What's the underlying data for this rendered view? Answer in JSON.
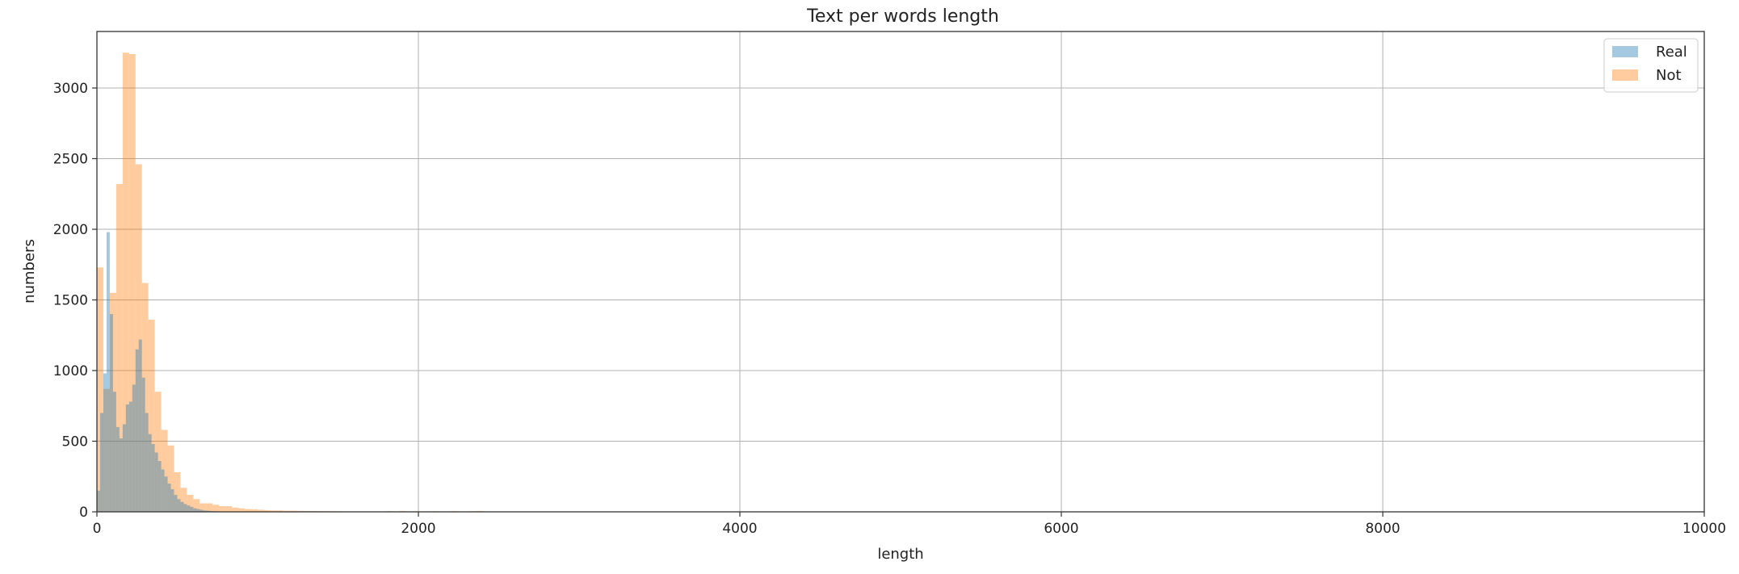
{
  "chart_data": {
    "type": "bar",
    "title": "Text per words length",
    "xlabel": "length",
    "ylabel": "numbers",
    "xlim": [
      0,
      10000
    ],
    "ylim": [
      0,
      3400
    ],
    "xticks": [
      0,
      2000,
      4000,
      6000,
      8000,
      10000
    ],
    "yticks": [
      0,
      500,
      1000,
      1500,
      2000,
      2500,
      3000
    ],
    "grid": true,
    "legend_position": "top-right",
    "series": [
      {
        "name": "Real",
        "color": "#1f77b4",
        "opacity": 0.4,
        "bin_width": 20,
        "bins": [
          [
            0,
            150
          ],
          [
            20,
            700
          ],
          [
            40,
            980
          ],
          [
            60,
            1980
          ],
          [
            80,
            1400
          ],
          [
            100,
            850
          ],
          [
            120,
            600
          ],
          [
            140,
            520
          ],
          [
            160,
            620
          ],
          [
            180,
            760
          ],
          [
            200,
            780
          ],
          [
            220,
            900
          ],
          [
            240,
            1150
          ],
          [
            260,
            1220
          ],
          [
            280,
            950
          ],
          [
            300,
            700
          ],
          [
            320,
            550
          ],
          [
            340,
            480
          ],
          [
            360,
            420
          ],
          [
            380,
            360
          ],
          [
            400,
            300
          ],
          [
            420,
            250
          ],
          [
            440,
            200
          ],
          [
            460,
            160
          ],
          [
            480,
            120
          ],
          [
            500,
            90
          ],
          [
            520,
            70
          ],
          [
            540,
            55
          ],
          [
            560,
            45
          ],
          [
            580,
            35
          ],
          [
            600,
            25
          ],
          [
            620,
            20
          ],
          [
            640,
            15
          ],
          [
            660,
            10
          ],
          [
            680,
            8
          ],
          [
            700,
            6
          ],
          [
            720,
            5
          ],
          [
            740,
            4
          ],
          [
            760,
            3
          ],
          [
            780,
            2
          ],
          [
            800,
            2
          ]
        ]
      },
      {
        "name": "Not",
        "color": "#ff7f0e",
        "opacity": 0.4,
        "bin_width": 40,
        "bins": [
          [
            0,
            1730
          ],
          [
            40,
            870
          ],
          [
            80,
            1550
          ],
          [
            120,
            2320
          ],
          [
            160,
            3250
          ],
          [
            200,
            3240
          ],
          [
            240,
            2460
          ],
          [
            280,
            1620
          ],
          [
            320,
            1360
          ],
          [
            360,
            850
          ],
          [
            400,
            580
          ],
          [
            440,
            470
          ],
          [
            480,
            280
          ],
          [
            520,
            170
          ],
          [
            560,
            120
          ],
          [
            600,
            90
          ],
          [
            640,
            60
          ],
          [
            680,
            60
          ],
          [
            720,
            50
          ],
          [
            760,
            40
          ],
          [
            800,
            40
          ],
          [
            840,
            30
          ],
          [
            880,
            25
          ],
          [
            920,
            20
          ],
          [
            960,
            18
          ],
          [
            1000,
            15
          ],
          [
            1040,
            12
          ],
          [
            1080,
            10
          ],
          [
            1120,
            10
          ],
          [
            1160,
            8
          ],
          [
            1200,
            8
          ],
          [
            1240,
            7
          ],
          [
            1280,
            6
          ],
          [
            1320,
            6
          ],
          [
            1360,
            5
          ],
          [
            1400,
            5
          ],
          [
            1440,
            4
          ],
          [
            1480,
            4
          ],
          [
            1520,
            3
          ],
          [
            1560,
            3
          ],
          [
            1800,
            5
          ],
          [
            1880,
            6
          ],
          [
            1960,
            4
          ],
          [
            2080,
            4
          ],
          [
            2200,
            5
          ],
          [
            2320,
            4
          ],
          [
            2360,
            6
          ]
        ]
      }
    ]
  }
}
